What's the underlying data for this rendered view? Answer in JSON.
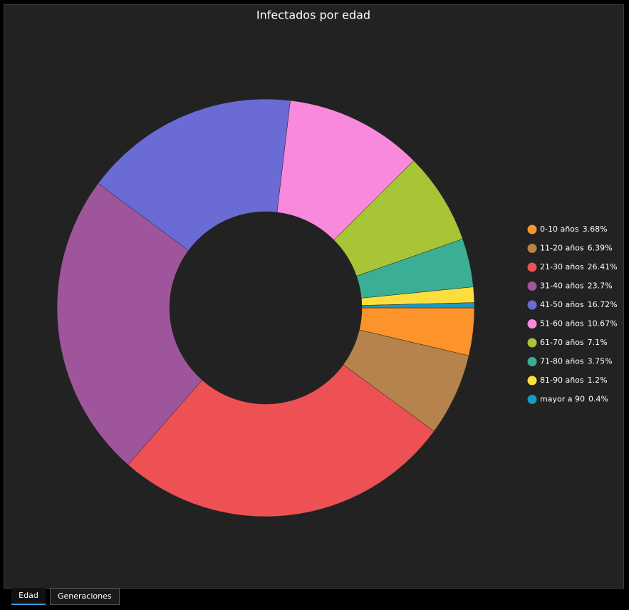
{
  "chart_data": {
    "type": "donut",
    "title": "Infectados por edad",
    "categories": [
      "0-10 años",
      "11-20 años",
      "21-30 años",
      "31-40 años",
      "41-50 años",
      "51-60 años",
      "61-70 años",
      "71-80 años",
      "81-90 años",
      "mayor a 90"
    ],
    "values": [
      3.68,
      6.39,
      26.41,
      23.7,
      16.72,
      10.67,
      7.1,
      3.75,
      1.2,
      0.4
    ],
    "value_labels": [
      "3.68%",
      "6.39%",
      "26.41%",
      "23.7%",
      "16.72%",
      "10.67%",
      "7.1%",
      "3.75%",
      "1.2%",
      "0.4%"
    ],
    "colors": [
      "#fd932b",
      "#b5834b",
      "#ed5153",
      "#9e559c",
      "#6b6bd6",
      "#f989dc",
      "#a8c537",
      "#3aaf95",
      "#fcdf3e",
      "#1a9ac3"
    ],
    "legend": "right"
  },
  "tabs": [
    "Edad",
    "Generaciones"
  ]
}
